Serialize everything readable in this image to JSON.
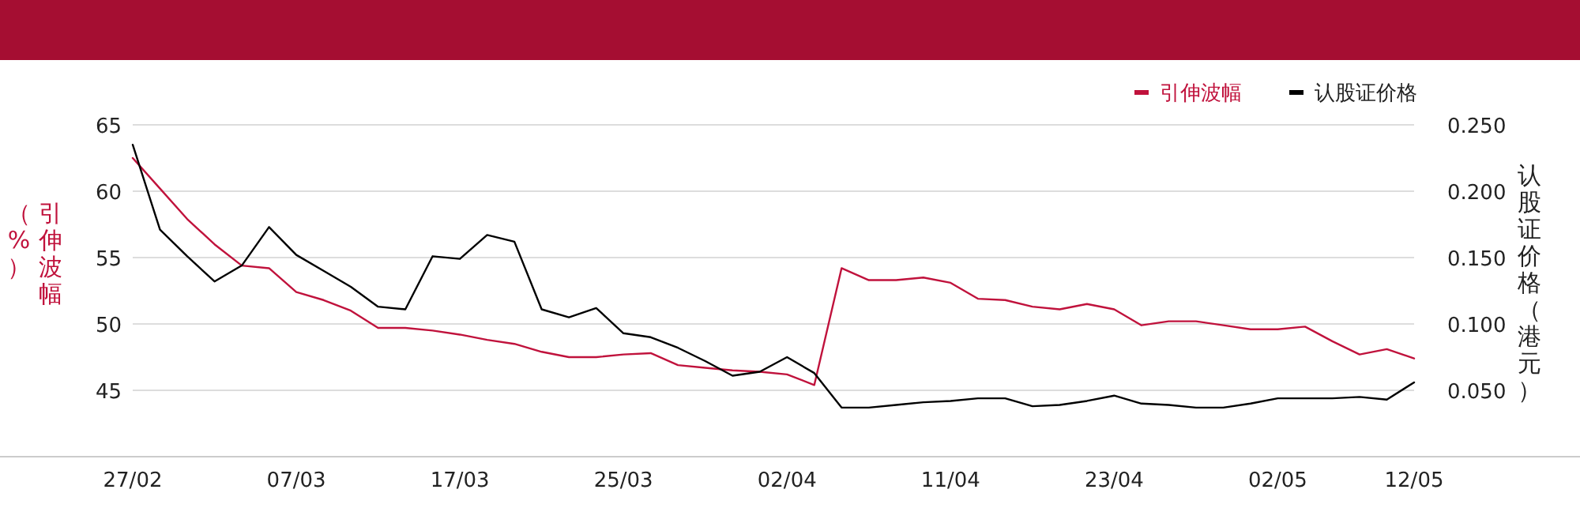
{
  "chart_data": {
    "type": "line",
    "categories": [
      "27/02",
      null,
      null,
      null,
      null,
      null,
      "07/03",
      null,
      null,
      null,
      null,
      null,
      "17/03",
      null,
      null,
      null,
      null,
      null,
      "25/03",
      null,
      null,
      null,
      null,
      null,
      "02/04",
      null,
      null,
      null,
      null,
      null,
      "11/04",
      null,
      null,
      null,
      null,
      null,
      "23/04",
      null,
      null,
      null,
      null,
      null,
      "02/05",
      null,
      null,
      null,
      null,
      "12/05"
    ],
    "series": [
      {
        "name": "引伸波幅",
        "color": "#c0123c",
        "values": [
          62.5,
          60.2,
          57.9,
          56.0,
          54.4,
          54.2,
          52.4,
          51.8,
          51.0,
          49.7,
          49.7,
          49.5,
          49.2,
          48.8,
          48.5,
          47.9,
          47.5,
          47.5,
          47.7,
          47.8,
          46.9,
          46.7,
          46.5,
          46.4,
          46.2,
          45.4,
          54.2,
          53.3,
          53.3,
          53.5,
          53.1,
          51.9,
          51.8,
          51.3,
          51.1,
          51.5,
          51.1,
          49.9,
          50.2,
          50.2,
          49.9,
          49.6,
          49.6,
          49.8,
          48.7,
          47.7,
          48.1,
          47.4
        ]
      },
      {
        "name": "认股证价格",
        "color": "#000000",
        "axis": "y2",
        "values": [
          0.235,
          0.171,
          0.151,
          0.132,
          0.144,
          0.173,
          0.152,
          0.14,
          0.128,
          0.113,
          0.111,
          0.151,
          0.149,
          0.167,
          0.162,
          0.111,
          0.105,
          0.112,
          0.093,
          0.09,
          0.082,
          0.072,
          0.061,
          0.064,
          0.075,
          0.063,
          0.037,
          0.037,
          0.039,
          0.041,
          0.042,
          0.044,
          0.044,
          0.038,
          0.039,
          0.042,
          0.046,
          0.04,
          0.039,
          0.037,
          0.037,
          0.04,
          0.044,
          0.044,
          0.044,
          0.045,
          0.043,
          0.056
        ]
      }
    ],
    "ylabel": "引伸波幅（%）",
    "y2label": "认股证价格（港元）",
    "ylim": [
      40,
      65
    ],
    "yticks": [
      45,
      50,
      55,
      60,
      65
    ],
    "y2lim": [
      0,
      0.25
    ],
    "y2ticks": [
      {
        "value": 0.05,
        "label": "0.050"
      },
      {
        "value": 0.1,
        "label": "0.100"
      },
      {
        "value": 0.15,
        "label": "0.150"
      },
      {
        "value": 0.2,
        "label": "0.200"
      },
      {
        "value": 0.25,
        "label": "0.250"
      }
    ],
    "grid": "y",
    "legend": "top right",
    "marker": "none",
    "line_style": "solid"
  }
}
